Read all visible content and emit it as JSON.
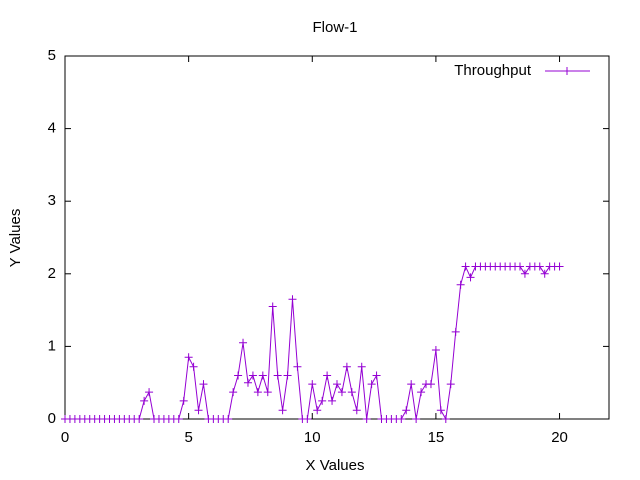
{
  "chart_data": {
    "type": "line",
    "title": "Flow-1",
    "x_label": "X Values",
    "y_label": "Y Values",
    "xlim": [
      0,
      22
    ],
    "xticks": [
      0,
      5,
      10,
      15,
      20
    ],
    "ylim": [
      0,
      5
    ],
    "yticks": [
      0,
      1,
      2,
      3,
      4,
      5
    ],
    "legend": "top-right",
    "x": [
      0,
      0.2,
      0.4,
      0.6,
      0.8,
      1,
      1.2,
      1.4,
      1.6,
      1.8,
      2,
      2.2,
      2.4,
      2.6,
      2.8,
      3,
      3.2,
      3.4,
      3.6,
      3.8,
      4,
      4.2,
      4.4,
      4.6,
      4.8,
      5,
      5.2,
      5.4,
      5.6,
      5.8,
      6,
      6.2,
      6.4,
      6.6,
      6.8,
      7,
      7.2,
      7.4,
      7.6,
      7.8,
      8,
      8.2,
      8.4,
      8.6,
      8.8,
      9,
      9.2,
      9.4,
      9.6,
      9.8,
      10,
      10.2,
      10.4,
      10.6,
      10.8,
      11,
      11.2,
      11.4,
      11.6,
      11.8,
      12,
      12.2,
      12.4,
      12.6,
      12.8,
      13,
      13.2,
      13.4,
      13.6,
      13.8,
      14,
      14.2,
      14.4,
      14.6,
      14.8,
      15,
      15.2,
      15.4,
      15.6,
      15.8,
      16,
      16.2,
      16.4,
      16.6,
      16.8,
      17,
      17.2,
      17.4,
      17.6,
      17.8,
      18,
      18.2,
      18.4,
      18.6,
      18.8,
      19,
      19.2,
      19.4,
      19.6,
      19.8,
      20
    ],
    "series": [
      {
        "name": "Throughput",
        "color": "#9400d3",
        "values": [
          0,
          0,
          0,
          0,
          0,
          0,
          0,
          0,
          0,
          0,
          0,
          0,
          0,
          0,
          0,
          0,
          0.25,
          0.37,
          0,
          0,
          0,
          0,
          0,
          0,
          0.25,
          0.85,
          0.72,
          0.12,
          0.48,
          0,
          0,
          0,
          0,
          0,
          0.37,
          0.6,
          1.05,
          0.5,
          0.6,
          0.37,
          0.6,
          0.37,
          1.55,
          0.6,
          0.12,
          0.6,
          1.65,
          0.72,
          0,
          0,
          0.48,
          0.12,
          0.25,
          0.6,
          0.25,
          0.48,
          0.37,
          0.72,
          0.37,
          0.12,
          0.72,
          0,
          0.48,
          0.6,
          0,
          0,
          0,
          0,
          0,
          0.12,
          0.48,
          0,
          0.37,
          0.48,
          0.48,
          0.95,
          0.12,
          0,
          0.48,
          1.2,
          1.85,
          2.1,
          1.95,
          2.1,
          2.1,
          2.1,
          2.1,
          2.1,
          2.1,
          2.1,
          2.1,
          2.1,
          2.1,
          2,
          2.1,
          2.1,
          2.1,
          2,
          2.1,
          2.1,
          2.1
        ]
      }
    ]
  }
}
